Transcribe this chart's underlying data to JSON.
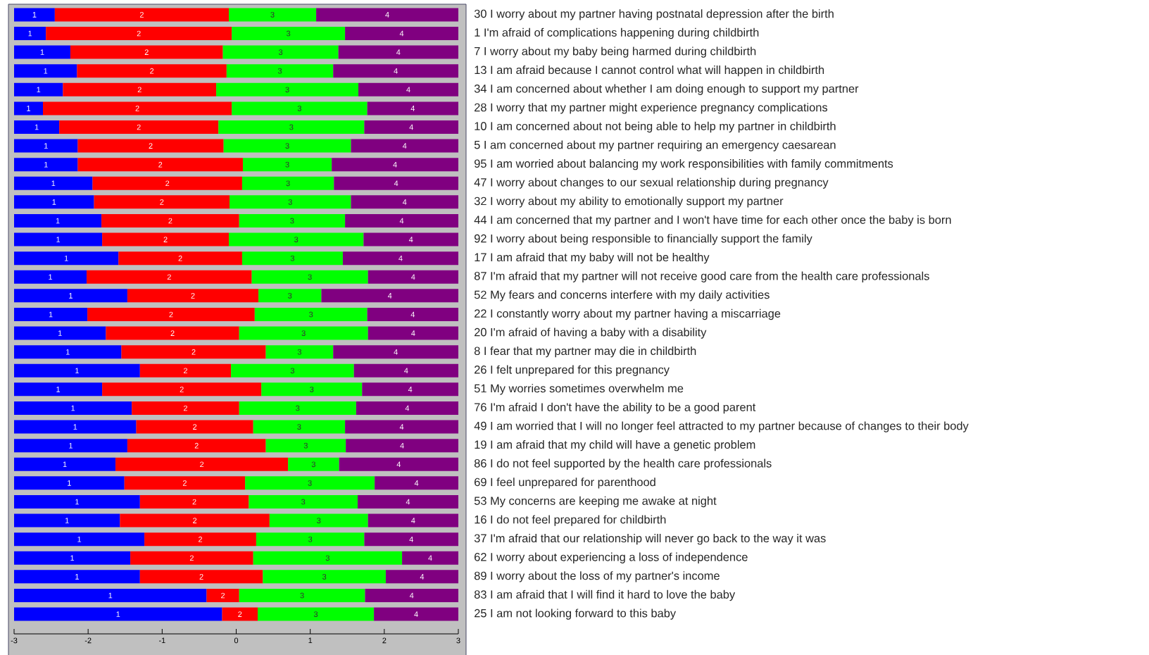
{
  "chart_data": {
    "type": "bar",
    "orientation": "horizontal",
    "categories": [
      "30 I worry about my partner having postnatal depression after the birth",
      "1 I'm afraid of complications happening during childbirth",
      "7 I worry about my baby being harmed during childbirth",
      "13 I am afraid because I cannot control what will happen in childbirth",
      "34 I am concerned about whether I am doing enough to support my partner",
      "28 I worry that my partner might experience pregnancy complications",
      "10 I am concerned about not being able to help my partner in childbirth",
      "5 I am concerned about my partner requiring an emergency caesarean",
      "95 I am worried about balancing my work responsibilities with family commitments",
      "47 I worry about changes to our sexual relationship during pregnancy",
      "32 I worry about my ability to emotionally support my partner",
      "44 I am concerned that my partner and I won't have time for each other once the baby is born",
      "92 I worry about being responsible to financially support the family",
      "17 I am afraid that my baby will not be healthy",
      "87 I'm afraid that my partner will not receive good care from the health care professionals",
      "52 My fears and concerns interfere with my daily activities",
      "22 I constantly worry about my partner having a miscarriage",
      "20 I'm afraid of having a baby with a disability",
      "8 I fear that my partner may die in childbirth",
      "26 I felt unprepared for this pregnancy",
      "51 My worries sometimes overwhelm me",
      "76 I'm afraid I don't have the ability to be a good parent",
      "49 I am worried that I will no longer feel attracted to my partner because of changes to their body",
      "19 I am afraid that my child will have a genetic problem",
      "86 I do not feel supported by the health care professionals",
      "69 I feel unprepared for parenthood",
      "53 My concerns are keeping me awake at night",
      "16 I do not feel prepared for childbirth",
      "37 I'm afraid that our relationship will never go back to the way it was",
      "62 I worry about experiencing a loss of independence",
      "89 I worry about the loss of my partner's income",
      "83 I am afraid that I will find it hard to love the baby",
      "25 I am not looking forward to this baby"
    ],
    "series": [
      {
        "name": "1",
        "color": "#0000ff",
        "base": [
          -3,
          -3,
          -3,
          -3,
          -3,
          -3,
          -3,
          -3,
          -3,
          -3,
          -3,
          -3,
          -3,
          -3,
          -3,
          -3,
          -3,
          -3,
          -3,
          -3,
          -3,
          -3,
          -3,
          -3,
          -3,
          -3,
          -3,
          -3,
          -3,
          -3,
          -3,
          -3,
          -3
        ],
        "values": [
          0.55,
          0.43,
          0.76,
          0.85,
          0.66,
          0.39,
          0.61,
          0.86,
          0.86,
          1.06,
          1.08,
          1.18,
          1.19,
          1.41,
          0.98,
          1.53,
          0.99,
          1.24,
          1.45,
          1.7,
          1.19,
          1.59,
          1.65,
          1.53,
          1.37,
          1.49,
          1.7,
          1.43,
          1.76,
          1.57,
          1.7,
          2.6,
          2.81
        ]
      },
      {
        "name": "2",
        "color": "#ff0000",
        "base": [
          -2.45,
          -2.57,
          -2.24,
          -2.15,
          -2.34,
          -2.61,
          -2.39,
          -2.14,
          -2.14,
          -1.94,
          -1.92,
          -1.82,
          -1.81,
          -1.59,
          -2.02,
          -1.47,
          -2.01,
          -1.76,
          -1.55,
          -1.3,
          -1.81,
          -1.41,
          -1.35,
          -1.47,
          -1.63,
          -1.51,
          -1.3,
          -1.57,
          -1.24,
          -1.43,
          -1.3,
          -0.4,
          -0.19
        ],
        "values": [
          2.35,
          2.51,
          2.06,
          2.02,
          2.07,
          2.55,
          2.15,
          1.97,
          2.23,
          2.02,
          1.83,
          1.86,
          1.71,
          1.67,
          2.23,
          1.77,
          2.26,
          1.8,
          1.95,
          1.23,
          2.15,
          1.45,
          1.58,
          1.87,
          2.33,
          1.63,
          1.47,
          2.02,
          1.51,
          1.66,
          1.66,
          0.44,
          0.48
        ]
      },
      {
        "name": "3",
        "color": "#00ff00",
        "base": [
          -0.1,
          -0.06,
          -0.18,
          -0.13,
          -0.27,
          -0.06,
          -0.24,
          -0.17,
          0.09,
          0.08,
          -0.09,
          0.04,
          -0.1,
          0.08,
          0.21,
          0.3,
          0.25,
          0.04,
          0.4,
          -0.07,
          0.34,
          0.04,
          0.23,
          0.4,
          0.7,
          0.12,
          0.17,
          0.45,
          0.27,
          0.23,
          0.36,
          0.04,
          0.29
        ],
        "values": [
          1.18,
          1.53,
          1.56,
          1.44,
          1.92,
          1.83,
          1.97,
          1.72,
          1.2,
          1.24,
          1.64,
          1.43,
          1.82,
          1.36,
          1.57,
          0.85,
          1.52,
          1.74,
          0.91,
          1.66,
          1.36,
          1.58,
          1.24,
          1.08,
          0.69,
          1.75,
          1.47,
          1.33,
          1.46,
          2.01,
          1.66,
          1.7,
          1.57
        ]
      },
      {
        "name": "4",
        "color": "#800080",
        "base": [
          1.08,
          1.47,
          1.38,
          1.31,
          1.65,
          1.77,
          1.73,
          1.55,
          1.29,
          1.32,
          1.55,
          1.47,
          1.72,
          1.44,
          1.78,
          1.15,
          1.77,
          1.78,
          1.31,
          1.59,
          1.7,
          1.62,
          1.47,
          1.48,
          1.39,
          1.87,
          1.64,
          1.78,
          1.73,
          2.24,
          2.02,
          1.74,
          1.86
        ],
        "values": [
          1.92,
          1.53,
          1.62,
          1.69,
          1.35,
          1.23,
          1.27,
          1.45,
          1.71,
          1.68,
          1.45,
          1.53,
          1.28,
          1.56,
          1.22,
          1.85,
          1.23,
          1.22,
          1.69,
          1.41,
          1.3,
          1.38,
          1.53,
          1.52,
          1.61,
          1.13,
          1.36,
          1.22,
          1.27,
          0.76,
          0.98,
          1.26,
          1.14
        ]
      }
    ],
    "xlim": [
      -3,
      3
    ],
    "xticks": [
      -3,
      -2,
      -1,
      0,
      1,
      2,
      3
    ]
  }
}
